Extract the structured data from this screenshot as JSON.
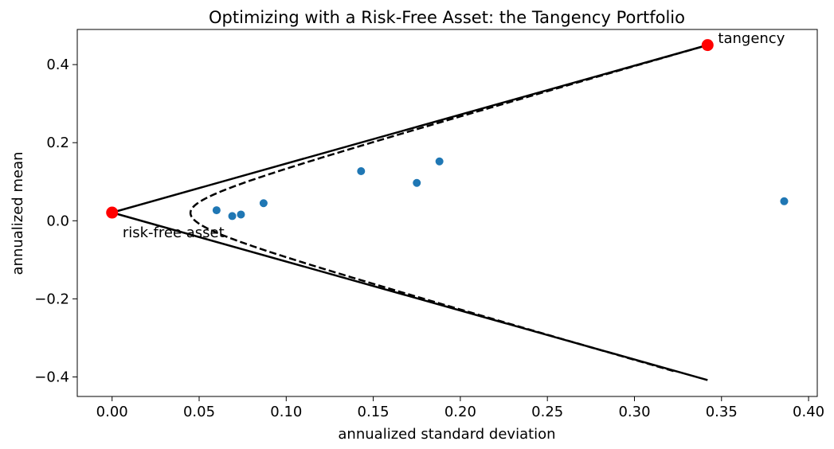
{
  "chart_data": {
    "type": "scatter",
    "title": "Optimizing with a Risk-Free Asset: the Tangency Portfolio",
    "xlabel": "annualized standard deviation",
    "ylabel": "annualized mean",
    "xlim": [
      -0.02,
      0.405
    ],
    "ylim": [
      -0.45,
      0.49
    ],
    "x_ticks": [
      0.0,
      0.05,
      0.1,
      0.15,
      0.2,
      0.25,
      0.3,
      0.35,
      0.4
    ],
    "x_tick_labels": [
      "0.00",
      "0.05",
      "0.10",
      "0.15",
      "0.20",
      "0.25",
      "0.30",
      "0.35",
      "0.40"
    ],
    "y_ticks": [
      -0.4,
      -0.2,
      0.0,
      0.2,
      0.4
    ],
    "y_tick_labels": [
      "−0.4",
      "−0.2",
      "0.0",
      "0.2",
      "0.4"
    ],
    "grid": false,
    "legend": "none",
    "assets": {
      "color": "#1f77b4",
      "x": [
        0.06,
        0.069,
        0.074,
        0.087,
        0.143,
        0.175,
        0.188,
        0.386
      ],
      "y": [
        0.027,
        0.012,
        0.016,
        0.045,
        0.127,
        0.097,
        0.152,
        0.05
      ]
    },
    "frontier": {
      "style": "dashed",
      "color": "#000000",
      "min_variance": {
        "sd": 0.045,
        "mean": 0.02
      },
      "mean_range": [
        -0.385,
        0.45
      ]
    },
    "capital_market_line": {
      "style": "solid",
      "color": "#000000",
      "x": [
        0.0,
        0.342
      ],
      "upper_y": [
        0.021,
        0.45
      ],
      "lower_y": [
        0.021,
        -0.408
      ]
    },
    "special_points": [
      {
        "name": "risk-free asset",
        "x": 0.0,
        "y": 0.021,
        "color": "#ff0000"
      },
      {
        "name": "tangency",
        "x": 0.342,
        "y": 0.45,
        "color": "#ff0000"
      }
    ],
    "annotations": [
      {
        "text": "risk-free asset",
        "x": 0.006,
        "y": -0.03
      },
      {
        "text": "tangency",
        "x": 0.348,
        "y": 0.468
      }
    ]
  }
}
